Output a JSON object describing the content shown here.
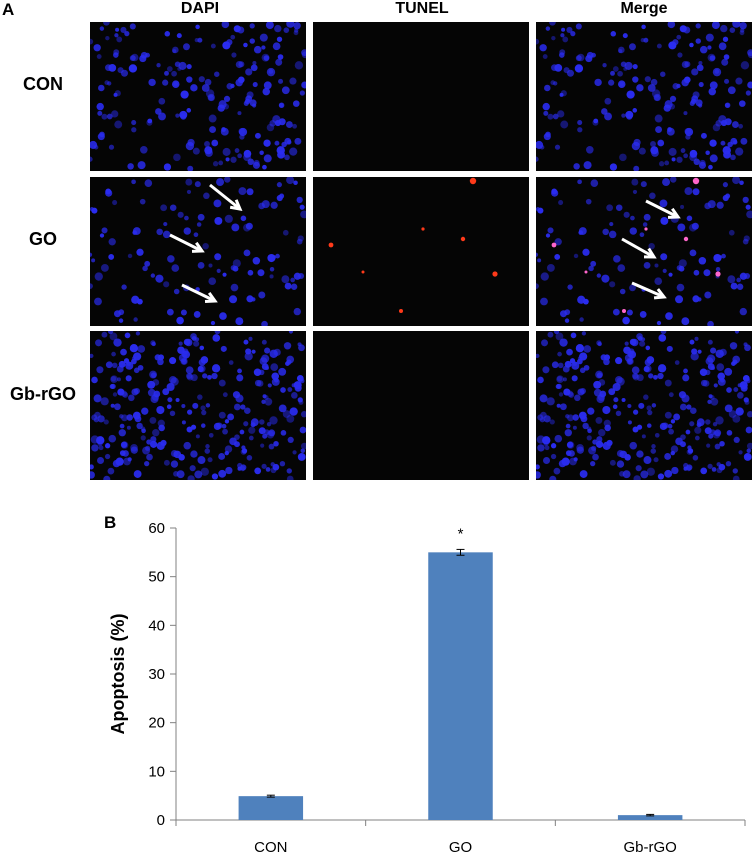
{
  "panel_a": {
    "letter": "A",
    "columns": [
      "DAPI",
      "TUNEL",
      "Merge"
    ],
    "rows": [
      "CON",
      "GO",
      "Gb-rGO"
    ]
  },
  "panel_b": {
    "letter": "B"
  },
  "colors": {
    "nucleus": "#2a2cf0",
    "tunel": "#ff3a1a",
    "bar": "#4f81bd",
    "arrow": "#ffffff"
  },
  "chart_data": {
    "type": "bar",
    "categories": [
      "CON",
      "GO",
      "Gb-rGO"
    ],
    "values": [
      4.9,
      55.0,
      1.0
    ],
    "errors": [
      0.2,
      0.6,
      0.15
    ],
    "annotations": [
      "",
      "*",
      ""
    ],
    "ylabel": "Apoptosis (%)",
    "xlabel": "",
    "ylim": [
      0,
      60
    ],
    "yticks": [
      0,
      10,
      20,
      30,
      40,
      50,
      60
    ],
    "grid": false,
    "legend": "none"
  }
}
